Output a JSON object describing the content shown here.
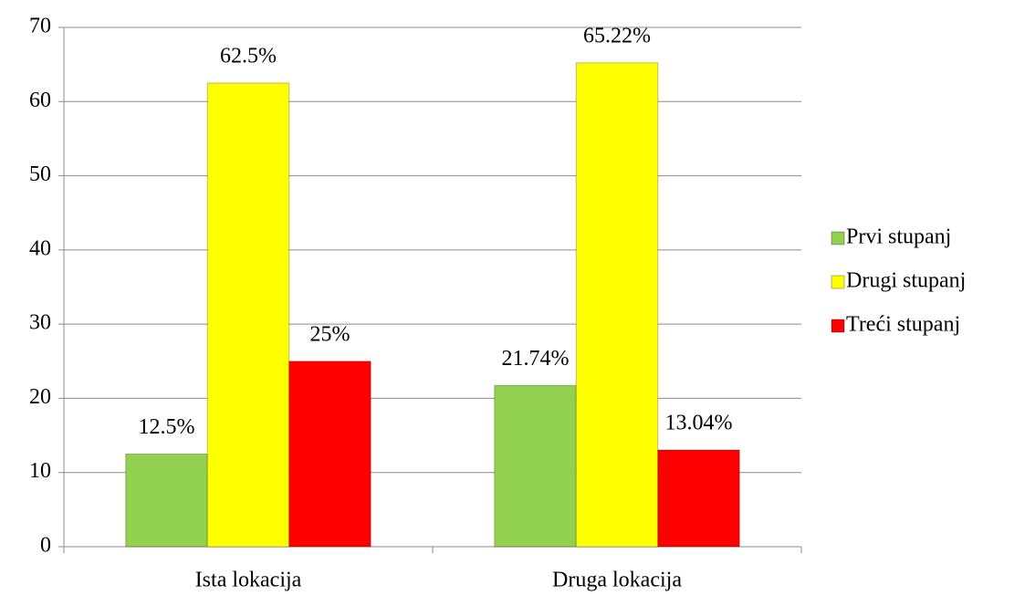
{
  "chart_data": {
    "type": "bar",
    "categories": [
      "Ista lokacija",
      "Druga lokacija"
    ],
    "series": [
      {
        "name": "Prvi stupanj",
        "color": "#92d050",
        "values": [
          12.5,
          21.74
        ],
        "value_labels": [
          "12.5%",
          "21.74%"
        ]
      },
      {
        "name": "Drugi stupanj",
        "color": "#ffff00",
        "values": [
          62.5,
          65.22
        ],
        "value_labels": [
          "62.5%",
          "65.22%"
        ]
      },
      {
        "name": "Treći stupanj",
        "color": "#ff0000",
        "values": [
          25,
          13.04
        ],
        "value_labels": [
          "25%",
          "13.04%"
        ]
      }
    ],
    "ylim": [
      0,
      70
    ],
    "yticks": [
      0,
      10,
      20,
      30,
      40,
      50,
      60,
      70
    ],
    "grid": true,
    "legend": "right"
  }
}
